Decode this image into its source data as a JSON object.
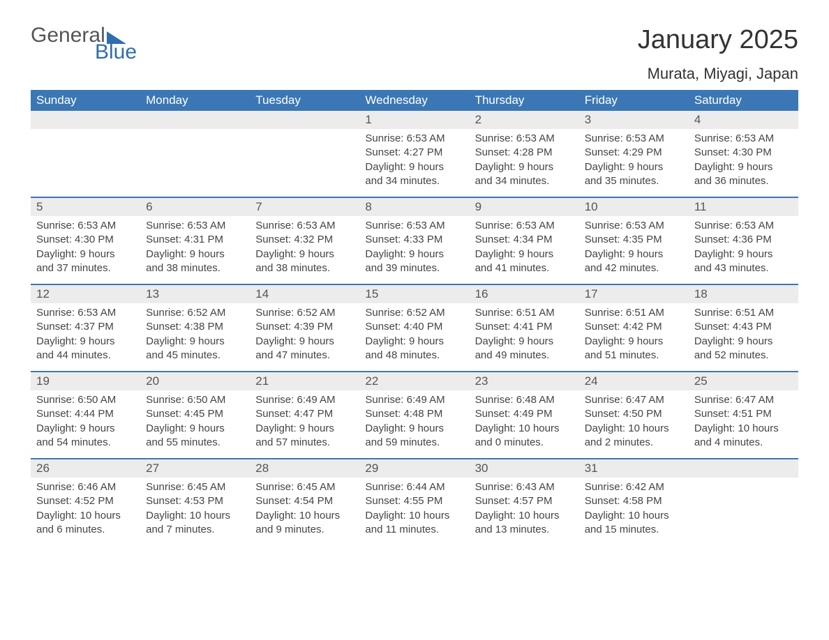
{
  "brand": {
    "word1": "General",
    "word2": "Blue"
  },
  "title": "January 2025",
  "location": "Murata, Miyagi, Japan",
  "colors": {
    "header_blue": "#3b77b5",
    "row_gray": "#ececec",
    "text_dark": "#333333",
    "text_body": "#444444",
    "brand_blue": "#2f6eab",
    "brand_gray": "#555555",
    "background": "#ffffff"
  },
  "typography": {
    "title_fontsize": 38,
    "location_fontsize": 22,
    "weekday_fontsize": 17,
    "daynum_fontsize": 17,
    "body_fontsize": 15
  },
  "layout": {
    "columns": 7,
    "rows": 5
  },
  "weekdays": [
    "Sunday",
    "Monday",
    "Tuesday",
    "Wednesday",
    "Thursday",
    "Friday",
    "Saturday"
  ],
  "weeks": [
    [
      {
        "num": "",
        "sunrise": "",
        "sunset": "",
        "daylight_a": "",
        "daylight_b": ""
      },
      {
        "num": "",
        "sunrise": "",
        "sunset": "",
        "daylight_a": "",
        "daylight_b": ""
      },
      {
        "num": "",
        "sunrise": "",
        "sunset": "",
        "daylight_a": "",
        "daylight_b": ""
      },
      {
        "num": "1",
        "sunrise": "Sunrise: 6:53 AM",
        "sunset": "Sunset: 4:27 PM",
        "daylight_a": "Daylight: 9 hours",
        "daylight_b": "and 34 minutes."
      },
      {
        "num": "2",
        "sunrise": "Sunrise: 6:53 AM",
        "sunset": "Sunset: 4:28 PM",
        "daylight_a": "Daylight: 9 hours",
        "daylight_b": "and 34 minutes."
      },
      {
        "num": "3",
        "sunrise": "Sunrise: 6:53 AM",
        "sunset": "Sunset: 4:29 PM",
        "daylight_a": "Daylight: 9 hours",
        "daylight_b": "and 35 minutes."
      },
      {
        "num": "4",
        "sunrise": "Sunrise: 6:53 AM",
        "sunset": "Sunset: 4:30 PM",
        "daylight_a": "Daylight: 9 hours",
        "daylight_b": "and 36 minutes."
      }
    ],
    [
      {
        "num": "5",
        "sunrise": "Sunrise: 6:53 AM",
        "sunset": "Sunset: 4:30 PM",
        "daylight_a": "Daylight: 9 hours",
        "daylight_b": "and 37 minutes."
      },
      {
        "num": "6",
        "sunrise": "Sunrise: 6:53 AM",
        "sunset": "Sunset: 4:31 PM",
        "daylight_a": "Daylight: 9 hours",
        "daylight_b": "and 38 minutes."
      },
      {
        "num": "7",
        "sunrise": "Sunrise: 6:53 AM",
        "sunset": "Sunset: 4:32 PM",
        "daylight_a": "Daylight: 9 hours",
        "daylight_b": "and 38 minutes."
      },
      {
        "num": "8",
        "sunrise": "Sunrise: 6:53 AM",
        "sunset": "Sunset: 4:33 PM",
        "daylight_a": "Daylight: 9 hours",
        "daylight_b": "and 39 minutes."
      },
      {
        "num": "9",
        "sunrise": "Sunrise: 6:53 AM",
        "sunset": "Sunset: 4:34 PM",
        "daylight_a": "Daylight: 9 hours",
        "daylight_b": "and 41 minutes."
      },
      {
        "num": "10",
        "sunrise": "Sunrise: 6:53 AM",
        "sunset": "Sunset: 4:35 PM",
        "daylight_a": "Daylight: 9 hours",
        "daylight_b": "and 42 minutes."
      },
      {
        "num": "11",
        "sunrise": "Sunrise: 6:53 AM",
        "sunset": "Sunset: 4:36 PM",
        "daylight_a": "Daylight: 9 hours",
        "daylight_b": "and 43 minutes."
      }
    ],
    [
      {
        "num": "12",
        "sunrise": "Sunrise: 6:53 AM",
        "sunset": "Sunset: 4:37 PM",
        "daylight_a": "Daylight: 9 hours",
        "daylight_b": "and 44 minutes."
      },
      {
        "num": "13",
        "sunrise": "Sunrise: 6:52 AM",
        "sunset": "Sunset: 4:38 PM",
        "daylight_a": "Daylight: 9 hours",
        "daylight_b": "and 45 minutes."
      },
      {
        "num": "14",
        "sunrise": "Sunrise: 6:52 AM",
        "sunset": "Sunset: 4:39 PM",
        "daylight_a": "Daylight: 9 hours",
        "daylight_b": "and 47 minutes."
      },
      {
        "num": "15",
        "sunrise": "Sunrise: 6:52 AM",
        "sunset": "Sunset: 4:40 PM",
        "daylight_a": "Daylight: 9 hours",
        "daylight_b": "and 48 minutes."
      },
      {
        "num": "16",
        "sunrise": "Sunrise: 6:51 AM",
        "sunset": "Sunset: 4:41 PM",
        "daylight_a": "Daylight: 9 hours",
        "daylight_b": "and 49 minutes."
      },
      {
        "num": "17",
        "sunrise": "Sunrise: 6:51 AM",
        "sunset": "Sunset: 4:42 PM",
        "daylight_a": "Daylight: 9 hours",
        "daylight_b": "and 51 minutes."
      },
      {
        "num": "18",
        "sunrise": "Sunrise: 6:51 AM",
        "sunset": "Sunset: 4:43 PM",
        "daylight_a": "Daylight: 9 hours",
        "daylight_b": "and 52 minutes."
      }
    ],
    [
      {
        "num": "19",
        "sunrise": "Sunrise: 6:50 AM",
        "sunset": "Sunset: 4:44 PM",
        "daylight_a": "Daylight: 9 hours",
        "daylight_b": "and 54 minutes."
      },
      {
        "num": "20",
        "sunrise": "Sunrise: 6:50 AM",
        "sunset": "Sunset: 4:45 PM",
        "daylight_a": "Daylight: 9 hours",
        "daylight_b": "and 55 minutes."
      },
      {
        "num": "21",
        "sunrise": "Sunrise: 6:49 AM",
        "sunset": "Sunset: 4:47 PM",
        "daylight_a": "Daylight: 9 hours",
        "daylight_b": "and 57 minutes."
      },
      {
        "num": "22",
        "sunrise": "Sunrise: 6:49 AM",
        "sunset": "Sunset: 4:48 PM",
        "daylight_a": "Daylight: 9 hours",
        "daylight_b": "and 59 minutes."
      },
      {
        "num": "23",
        "sunrise": "Sunrise: 6:48 AM",
        "sunset": "Sunset: 4:49 PM",
        "daylight_a": "Daylight: 10 hours",
        "daylight_b": "and 0 minutes."
      },
      {
        "num": "24",
        "sunrise": "Sunrise: 6:47 AM",
        "sunset": "Sunset: 4:50 PM",
        "daylight_a": "Daylight: 10 hours",
        "daylight_b": "and 2 minutes."
      },
      {
        "num": "25",
        "sunrise": "Sunrise: 6:47 AM",
        "sunset": "Sunset: 4:51 PM",
        "daylight_a": "Daylight: 10 hours",
        "daylight_b": "and 4 minutes."
      }
    ],
    [
      {
        "num": "26",
        "sunrise": "Sunrise: 6:46 AM",
        "sunset": "Sunset: 4:52 PM",
        "daylight_a": "Daylight: 10 hours",
        "daylight_b": "and 6 minutes."
      },
      {
        "num": "27",
        "sunrise": "Sunrise: 6:45 AM",
        "sunset": "Sunset: 4:53 PM",
        "daylight_a": "Daylight: 10 hours",
        "daylight_b": "and 7 minutes."
      },
      {
        "num": "28",
        "sunrise": "Sunrise: 6:45 AM",
        "sunset": "Sunset: 4:54 PM",
        "daylight_a": "Daylight: 10 hours",
        "daylight_b": "and 9 minutes."
      },
      {
        "num": "29",
        "sunrise": "Sunrise: 6:44 AM",
        "sunset": "Sunset: 4:55 PM",
        "daylight_a": "Daylight: 10 hours",
        "daylight_b": "and 11 minutes."
      },
      {
        "num": "30",
        "sunrise": "Sunrise: 6:43 AM",
        "sunset": "Sunset: 4:57 PM",
        "daylight_a": "Daylight: 10 hours",
        "daylight_b": "and 13 minutes."
      },
      {
        "num": "31",
        "sunrise": "Sunrise: 6:42 AM",
        "sunset": "Sunset: 4:58 PM",
        "daylight_a": "Daylight: 10 hours",
        "daylight_b": "and 15 minutes."
      },
      {
        "num": "",
        "sunrise": "",
        "sunset": "",
        "daylight_a": "",
        "daylight_b": ""
      }
    ]
  ]
}
